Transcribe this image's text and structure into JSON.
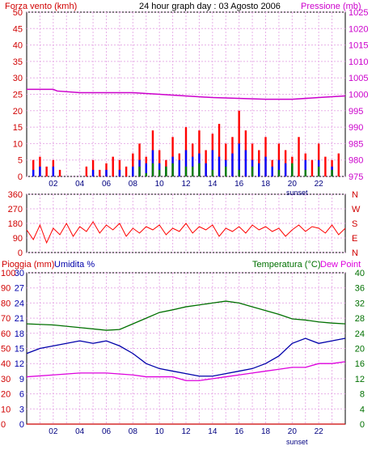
{
  "header": {
    "left_label": "Forza vento (kmh)",
    "title": "24 hour graph day : 03 Agosto 2006",
    "right_label": "Pressione (mb)"
  },
  "panel3_header": {
    "rain_label": "Pioggia (mm)",
    "hum_label": "Umidita %",
    "temp_label": "Temperatura (°C)",
    "dew_label": "Dew Point"
  },
  "sunset_label": "sunset",
  "colors": {
    "wind": "#ff0000",
    "wind_avg": "#0000ff",
    "wind_low": "#008000",
    "pressure": "#cc00cc",
    "direction": "#ff0000",
    "temperature": "#007000",
    "humidity": "#0000aa",
    "dewpoint": "#dd00dd",
    "rain": "#cc0000",
    "grid": "#e8b0e8",
    "frame": "#000000"
  },
  "chart_data": [
    {
      "type": "bar",
      "title": "24 hour graph day : 03 Agosto 2006",
      "x_ticks": [
        "02",
        "04",
        "06",
        "08",
        "10",
        "12",
        "14",
        "16",
        "18",
        "20",
        "22"
      ],
      "left_axis": {
        "label": "Forza vento (kmh)",
        "ticks": [
          0,
          5,
          10,
          15,
          20,
          25,
          30,
          35,
          40,
          45,
          50
        ],
        "range": [
          0,
          50
        ]
      },
      "right_axis": {
        "label": "Pressione (mb)",
        "ticks": [
          975,
          980,
          985,
          990,
          995,
          1000,
          1005,
          1010,
          1015,
          1020,
          1025
        ],
        "range": [
          975,
          1025
        ]
      },
      "x_range_hours": [
        0,
        24
      ],
      "annotation": "sunset",
      "series": [
        {
          "name": "Forza vento (kmh)",
          "kind": "gust",
          "points": [
            [
              0.5,
              5
            ],
            [
              1,
              6
            ],
            [
              1.5,
              3
            ],
            [
              2,
              5
            ],
            [
              2.5,
              2
            ],
            [
              3,
              0
            ],
            [
              4,
              0
            ],
            [
              4.5,
              3
            ],
            [
              5,
              5
            ],
            [
              5.5,
              2
            ],
            [
              6,
              4
            ],
            [
              6.5,
              6
            ],
            [
              7,
              5
            ],
            [
              7.5,
              3
            ],
            [
              8,
              7
            ],
            [
              8.5,
              10
            ],
            [
              9,
              6
            ],
            [
              9.5,
              14
            ],
            [
              10,
              8
            ],
            [
              10.5,
              5
            ],
            [
              11,
              12
            ],
            [
              11.5,
              7
            ],
            [
              12,
              15
            ],
            [
              12.5,
              10
            ],
            [
              13,
              14
            ],
            [
              13.5,
              8
            ],
            [
              14,
              13
            ],
            [
              14.5,
              16
            ],
            [
              15,
              10
            ],
            [
              15.5,
              12
            ],
            [
              16,
              20
            ],
            [
              16.5,
              14
            ],
            [
              17,
              10
            ],
            [
              17.5,
              8
            ],
            [
              18,
              12
            ],
            [
              18.5,
              5
            ],
            [
              19,
              10
            ],
            [
              19.5,
              8
            ],
            [
              20,
              6
            ],
            [
              20.5,
              12
            ],
            [
              21,
              7
            ],
            [
              21.5,
              5
            ],
            [
              22,
              10
            ],
            [
              22.5,
              6
            ],
            [
              23,
              5
            ],
            [
              23.5,
              7
            ]
          ]
        },
        {
          "name": "avg",
          "kind": "avg",
          "points": [
            [
              0.5,
              2
            ],
            [
              1,
              3
            ],
            [
              2,
              3
            ],
            [
              3,
              0
            ],
            [
              5,
              2
            ],
            [
              6,
              2
            ],
            [
              7,
              2
            ],
            [
              8,
              3
            ],
            [
              8.5,
              5
            ],
            [
              9,
              4
            ],
            [
              9.5,
              8
            ],
            [
              10,
              4
            ],
            [
              10.5,
              3
            ],
            [
              11,
              6
            ],
            [
              11.5,
              5
            ],
            [
              12,
              8
            ],
            [
              12.5,
              6
            ],
            [
              13,
              7
            ],
            [
              13.5,
              4
            ],
            [
              14,
              8
            ],
            [
              14.5,
              6
            ],
            [
              15,
              5
            ],
            [
              15.5,
              7
            ],
            [
              16,
              10
            ],
            [
              16.5,
              8
            ],
            [
              17,
              5
            ],
            [
              17.5,
              4
            ],
            [
              18,
              6
            ],
            [
              18.5,
              3
            ],
            [
              19,
              5
            ],
            [
              19.5,
              4
            ],
            [
              20,
              3
            ],
            [
              21,
              5
            ],
            [
              22,
              5
            ],
            [
              23,
              3
            ]
          ]
        },
        {
          "name": "low",
          "kind": "low",
          "points": [
            [
              8.5,
              3
            ],
            [
              9,
              1
            ],
            [
              9.5,
              4
            ],
            [
              10,
              2
            ],
            [
              10.5,
              3
            ],
            [
              11,
              4
            ],
            [
              12,
              3
            ],
            [
              12.5,
              3
            ],
            [
              13,
              4
            ],
            [
              14,
              2
            ],
            [
              15,
              3
            ],
            [
              16,
              2
            ],
            [
              17,
              3
            ],
            [
              19,
              2
            ],
            [
              20,
              4
            ],
            [
              21,
              2
            ],
            [
              22,
              3
            ],
            [
              23,
              2
            ]
          ]
        },
        {
          "name": "Pressione (mb)",
          "axis": "right",
          "points": [
            [
              0,
              1001.5
            ],
            [
              2,
              1001.5
            ],
            [
              2.3,
              1001
            ],
            [
              4,
              1000.5
            ],
            [
              8,
              1000.5
            ],
            [
              10,
              1000
            ],
            [
              14,
              999
            ],
            [
              18,
              998.5
            ],
            [
              20,
              998.5
            ],
            [
              22,
              999
            ],
            [
              24,
              999.5
            ]
          ]
        }
      ]
    },
    {
      "type": "line",
      "left_ticks": [
        360,
        270,
        180,
        90,
        0
      ],
      "right_ticks": [
        "N",
        "W",
        "S",
        "E",
        "N"
      ],
      "x_range_hours": [
        0,
        24
      ],
      "series": [
        {
          "name": "direction",
          "points": [
            [
              0,
              140
            ],
            [
              0.5,
              80
            ],
            [
              1,
              170
            ],
            [
              1.5,
              60
            ],
            [
              2,
              150
            ],
            [
              2.5,
              110
            ],
            [
              3,
              180
            ],
            [
              3.5,
              100
            ],
            [
              4,
              160
            ],
            [
              4.5,
              130
            ],
            [
              5,
              190
            ],
            [
              5.5,
              120
            ],
            [
              6,
              170
            ],
            [
              6.5,
              140
            ],
            [
              7,
              180
            ],
            [
              7.5,
              100
            ],
            [
              8,
              150
            ],
            [
              8.5,
              120
            ],
            [
              9,
              160
            ],
            [
              9.5,
              140
            ],
            [
              10,
              170
            ],
            [
              10.5,
              110
            ],
            [
              11,
              150
            ],
            [
              11.5,
              130
            ],
            [
              12,
              180
            ],
            [
              12.5,
              120
            ],
            [
              13,
              160
            ],
            [
              13.5,
              140
            ],
            [
              14,
              170
            ],
            [
              14.5,
              100
            ],
            [
              15,
              150
            ],
            [
              15.5,
              130
            ],
            [
              16,
              160
            ],
            [
              16.5,
              120
            ],
            [
              17,
              170
            ],
            [
              17.5,
              140
            ],
            [
              18,
              160
            ],
            [
              18.5,
              130
            ],
            [
              19,
              150
            ],
            [
              19.5,
              100
            ],
            [
              20,
              140
            ],
            [
              20.5,
              170
            ],
            [
              21,
              130
            ],
            [
              21.5,
              160
            ],
            [
              22,
              150
            ],
            [
              22.5,
              120
            ],
            [
              23,
              170
            ],
            [
              23.5,
              110
            ],
            [
              24,
              150
            ]
          ]
        }
      ]
    },
    {
      "type": "line",
      "x_ticks": [
        "02",
        "04",
        "06",
        "08",
        "10",
        "12",
        "14",
        "16",
        "18",
        "20",
        "22"
      ],
      "axes": {
        "rain": {
          "label": "Pioggia (mm)",
          "ticks": [
            0,
            10,
            20,
            30,
            40,
            50,
            60,
            70,
            80,
            90,
            100
          ],
          "range": [
            0,
            100
          ]
        },
        "humidity": {
          "label": "Umidita %",
          "ticks": [
            0,
            3,
            6,
            9,
            12,
            15,
            18,
            21,
            24,
            27,
            30
          ],
          "range": [
            0,
            30
          ]
        },
        "temperature": {
          "label": "Temperatura (°C)",
          "ticks": [
            0,
            4,
            8,
            12,
            16,
            20,
            24,
            28,
            32,
            36,
            40
          ],
          "range": [
            0,
            40
          ]
        },
        "dewpoint": {
          "label": "Dew Point"
        }
      },
      "annotation": "sunset",
      "x_range_hours": [
        0,
        24
      ],
      "series": [
        {
          "name": "Temperatura (°C)",
          "axis": "temperature",
          "points": [
            [
              0,
              26.5
            ],
            [
              2,
              26.2
            ],
            [
              4,
              25.5
            ],
            [
              6,
              24.8
            ],
            [
              7,
              25
            ],
            [
              8,
              26.5
            ],
            [
              9,
              28
            ],
            [
              10,
              29.5
            ],
            [
              11,
              30.2
            ],
            [
              12,
              31
            ],
            [
              13,
              31.5
            ],
            [
              14,
              32
            ],
            [
              15,
              32.5
            ],
            [
              16,
              32
            ],
            [
              17,
              31
            ],
            [
              18,
              30
            ],
            [
              19,
              29
            ],
            [
              20,
              27.8
            ],
            [
              21,
              27.5
            ],
            [
              22,
              27
            ],
            [
              23,
              26.7
            ],
            [
              24,
              26.5
            ]
          ]
        },
        {
          "name": "Umidita %",
          "axis": "humidity",
          "points": [
            [
              0,
              14
            ],
            [
              1,
              15
            ],
            [
              2,
              15.5
            ],
            [
              3,
              16
            ],
            [
              4,
              16.5
            ],
            [
              5,
              16
            ],
            [
              6,
              16.5
            ],
            [
              7,
              15.5
            ],
            [
              8,
              14
            ],
            [
              9,
              12
            ],
            [
              10,
              11
            ],
            [
              11,
              10.5
            ],
            [
              12,
              10
            ],
            [
              13,
              9.5
            ],
            [
              14,
              9.5
            ],
            [
              15,
              10
            ],
            [
              16,
              10.5
            ],
            [
              17,
              11
            ],
            [
              18,
              12
            ],
            [
              19,
              13.5
            ],
            [
              20,
              16
            ],
            [
              21,
              17
            ],
            [
              22,
              16
            ],
            [
              23,
              16.5
            ],
            [
              24,
              17
            ]
          ]
        },
        {
          "name": "Dew Point",
          "axis": "temperature",
          "points": [
            [
              0,
              12.5
            ],
            [
              2,
              13
            ],
            [
              4,
              13.5
            ],
            [
              6,
              13.5
            ],
            [
              8,
              13
            ],
            [
              9,
              12.5
            ],
            [
              10,
              12.5
            ],
            [
              11,
              12.5
            ],
            [
              12,
              11.5
            ],
            [
              13,
              11.5
            ],
            [
              14,
              12
            ],
            [
              15,
              12.5
            ],
            [
              16,
              13
            ],
            [
              17,
              13.5
            ],
            [
              18,
              14
            ],
            [
              19,
              14.5
            ],
            [
              20,
              15
            ],
            [
              21,
              15
            ],
            [
              22,
              16
            ],
            [
              23,
              16
            ],
            [
              24,
              16.5
            ]
          ]
        },
        {
          "name": "Pioggia (mm)",
          "axis": "rain",
          "points": [
            [
              0,
              0
            ],
            [
              24,
              0
            ]
          ]
        }
      ]
    }
  ]
}
